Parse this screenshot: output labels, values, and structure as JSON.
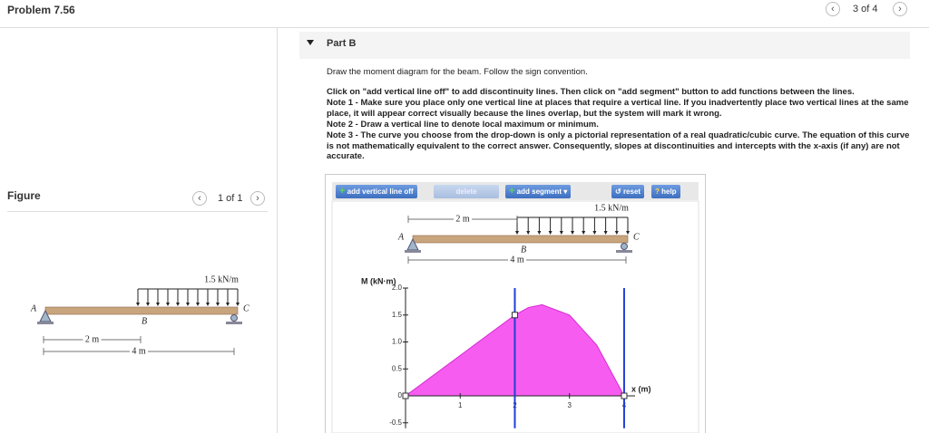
{
  "header": {
    "title": "Problem 7.56",
    "pager": "3 of 4"
  },
  "figure_panel": {
    "title": "Figure",
    "pager": "1 of 1"
  },
  "figure_beam": {
    "load": "1.5 kN/m",
    "a": "A",
    "b": "B",
    "c": "C",
    "dim_1": "2 m",
    "dim_2": "4 m"
  },
  "part": {
    "title": "Part B",
    "intro": "Draw the moment diagram for the beam. Follow the sign convention.",
    "instructions": [
      "Click on \"add vertical line off\" to add discontinuity lines. Then click on \"add segment\" button to add functions between the lines.",
      "Note 1 - Make sure you place only one vertical line at places that require a vertical line. If you inadvertently place two vertical lines at the same place, it will appear correct visually because the lines overlap, but the system will mark it wrong.",
      "Note 2 - Draw a vertical line to denote local maximum or minimum.",
      "Note 3 - The curve you choose from the drop-down is only a pictorial representation of a real quadratic/cubic curve. The equation of this curve is not mathematically equivalent to the correct answer. Consequently, slopes at discontinuities and intercepts with the x-axis (if any) are not accurate."
    ]
  },
  "toolbar": {
    "add_line": "add vertical line off",
    "delete": "delete",
    "add_segment": "add segment",
    "reset": "reset",
    "help": "help"
  },
  "tool_beam": {
    "load": "1.5 kN/m",
    "a": "A",
    "b": "B",
    "c": "C",
    "dim_1": "2 m",
    "dim_2": "4 m"
  },
  "chart_data": {
    "type": "area",
    "y_label": "M (kN·m)",
    "x_label": "x (m)",
    "x": [
      0,
      2,
      2.25,
      2.5,
      3,
      3.5,
      4
    ],
    "values": [
      0,
      1.5,
      1.64,
      1.69,
      1.5,
      0.94,
      0
    ],
    "color": "#f75cf0",
    "line_color": "#2040d8",
    "discontinuities": [
      2,
      4
    ],
    "xlim": [
      0,
      4.2
    ],
    "ylim": [
      -0.6,
      2.0
    ],
    "xticks": [
      1,
      2,
      3,
      4
    ],
    "yticks": [
      {
        "value": 2,
        "label": "2.0"
      },
      {
        "value": 1.5,
        "label": "1.5"
      },
      {
        "value": 1,
        "label": "1.0"
      },
      {
        "value": 0.5,
        "label": "0.5"
      },
      0,
      {
        "value": -0.5,
        "label": "-0.5"
      }
    ]
  }
}
